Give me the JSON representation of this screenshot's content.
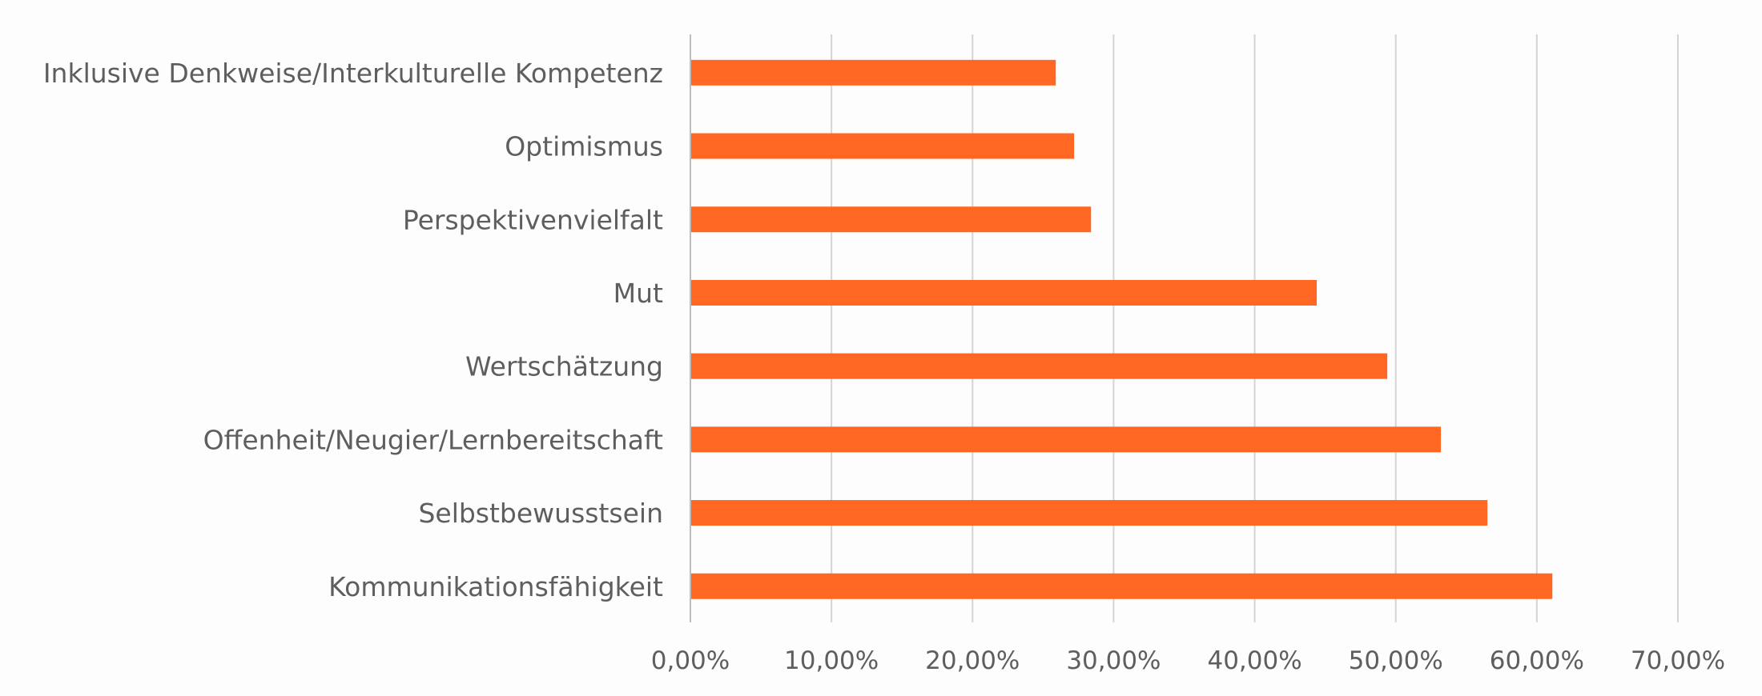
{
  "chart_data": {
    "type": "bar",
    "orientation": "horizontal",
    "title": "",
    "xlabel": "",
    "ylabel": "",
    "categories": [
      "Inklusive Denkweise/Interkulturelle Kompetenz",
      "Optimismus",
      "Perspektivenvielfalt",
      "Mut",
      "Wertschätzung",
      "Offenheit/Neugier/Lernbereitschaft",
      "Selbstbewusstsein",
      "Kommunikationsfähigkeit"
    ],
    "values": [
      0.259,
      0.272,
      0.284,
      0.444,
      0.494,
      0.532,
      0.565,
      0.611
    ],
    "xlim": [
      0,
      0.7
    ],
    "x_ticks": [
      0,
      0.1,
      0.2,
      0.3,
      0.4,
      0.5,
      0.6,
      0.7
    ],
    "x_tick_labels": [
      "0,00%",
      "10,00%",
      "20,00%",
      "30,00%",
      "40,00%",
      "50,00%",
      "60,00%",
      "70,00%"
    ],
    "grid": "vertical",
    "legend": "none",
    "bar_color": "#ff6723"
  }
}
